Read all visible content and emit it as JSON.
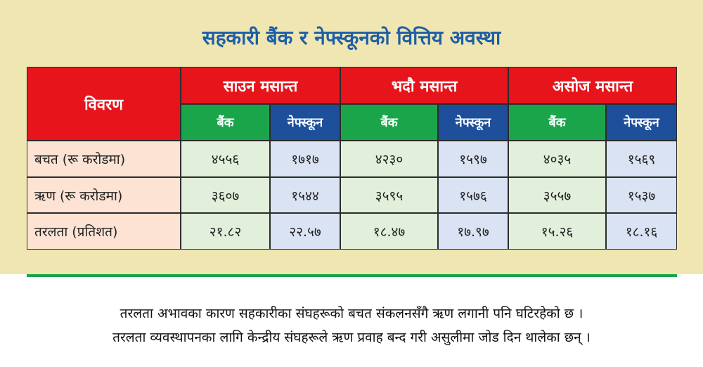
{
  "title": "सहकारी बैंक र नेफ्स्कूनको वित्तिय अवस्था",
  "table": {
    "header": "विवरण",
    "groups": [
      {
        "label": "साउन मसान्त",
        "columns": [
          "बैंक",
          "नेफ्स्कून"
        ]
      },
      {
        "label": "भदौ मसान्त",
        "columns": [
          "बैंक",
          "नेफ्स्कून"
        ]
      },
      {
        "label": "असोज मसान्त",
        "columns": [
          "बैंक",
          "नेफ्स्कून"
        ]
      }
    ],
    "rows": [
      [
        "बचत (रू करोडमा)",
        "४५५६",
        "१७१७",
        "४२३०",
        "१५९७",
        "४०३५",
        "१५६९"
      ],
      [
        "ऋण (रू करोडमा)",
        "३६०७",
        "१५४४",
        "३५९५",
        "१५७६",
        "३५५७",
        "१५३७"
      ],
      [
        "तरलता (प्रतिशत)",
        "२१.८२",
        "२२.५७",
        "१८.४७",
        "१७.९७",
        "१५.२६",
        "१८.१६"
      ]
    ]
  },
  "footer": [
    "तरलता अभावका कारण सहकारीका संघहरूको बचत संकलनसँगै ऋण लगानी पनि घटिरहेको छ ।",
    "तरलता व्यवस्थापनका लागि केन्द्रीय संघहरूले ऋण प्रवाह बन्द गरी असुलीमा जोड दिन थालेका छन् ।"
  ]
}
